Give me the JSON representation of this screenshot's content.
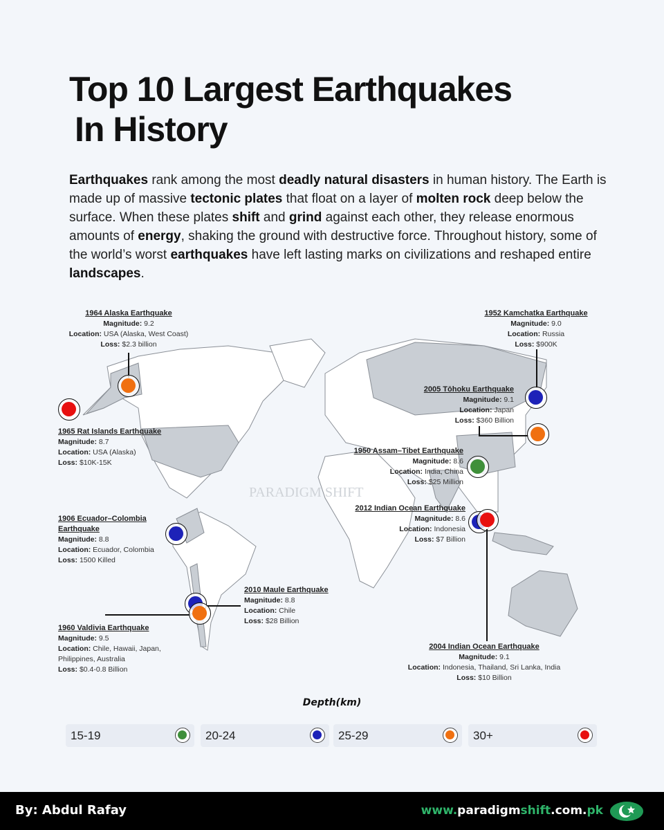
{
  "title": {
    "line1": "Top 10 Largest Earthquakes",
    "line2": "In History"
  },
  "intro": [
    {
      "t": "Earthquakes",
      "b": true
    },
    {
      "t": " rank among the most "
    },
    {
      "t": "deadly natural disasters",
      "b": true
    },
    {
      "t": " in human history. The Earth is made up of massive "
    },
    {
      "t": "tectonic plates",
      "b": true
    },
    {
      "t": " that float on a layer of "
    },
    {
      "t": "molten rock",
      "b": true
    },
    {
      "t": " deep below the surface. When these plates "
    },
    {
      "t": "shift",
      "b": true
    },
    {
      "t": " and "
    },
    {
      "t": "grind",
      "b": true
    },
    {
      "t": " against each other, they release enormous amounts of "
    },
    {
      "t": "energy",
      "b": true
    },
    {
      "t": ", shaking the ground with destructive force. Throughout history, some of the world’s worst "
    },
    {
      "t": "earthquakes",
      "b": true
    },
    {
      "t": " have left lasting marks on civilizations and reshaped entire "
    },
    {
      "t": "landscapes",
      "b": true
    },
    {
      "t": "."
    }
  ],
  "field_labels": {
    "magnitude": "Magnitude:",
    "location": "Location:",
    "loss": "Loss:"
  },
  "colors": {
    "15-19": "#3f8f3a",
    "20-24": "#1d22b8",
    "25-29": "#f07010",
    "30+": "#e81010"
  },
  "earthquakes": [
    {
      "name": "1964 Alaska Earthquake",
      "magnitude": "9.2",
      "location": "USA (Alaska, West Coast)",
      "loss": "$2.3 billion",
      "depth": "25-29"
    },
    {
      "name": "1965 Rat Islands Earthquake",
      "magnitude": "8.7",
      "location": "USA (Alaska)",
      "loss": "$10K-15K",
      "depth": "30+"
    },
    {
      "name": "1952 Kamchatka Earthquake",
      "magnitude": "9.0",
      "location": "Russia",
      "loss": "$900K",
      "depth": "20-24"
    },
    {
      "name": "2005 Tōhoku Earthquake",
      "magnitude": "9.1",
      "location": "Japan",
      "loss": "$360 Billion",
      "depth": "25-29"
    },
    {
      "name": "1950 Assam–Tibet Earthquake",
      "magnitude": "8.6",
      "location": "India, China",
      "loss": "$25 Million",
      "depth": "15-19"
    },
    {
      "name": "2012 Indian Ocean Earthquake",
      "magnitude": "8.6",
      "location": "Indonesia",
      "loss": "$7 Billion",
      "depth": "20-24"
    },
    {
      "name": "1906 Ecuador–Colombia Earthquake",
      "magnitude": "8.8",
      "location": "Ecuador, Colombia",
      "loss": "1500 Killed",
      "depth": "20-24"
    },
    {
      "name": "2010 Maule Earthquake",
      "magnitude": "8.8",
      "location": "Chile",
      "loss": "$28 Billion",
      "depth": "20-24"
    },
    {
      "name": "1960 Valdivia Earthquake",
      "magnitude": "9.5",
      "location": "Chile, Hawaii, Japan, Philippines, Australia",
      "loss": "$0.4-0.8 Billion",
      "depth": "25-29"
    },
    {
      "name": "2004 Indian Ocean Earthquake",
      "magnitude": "9.1",
      "location": "Indonesia, Thailand, Sri Lanka, India",
      "loss": "$10 Billion",
      "depth": "30+"
    }
  ],
  "legend": {
    "title": "Depth(km)",
    "items": [
      "15-19",
      "20-24",
      "25-29",
      "30+"
    ]
  },
  "watermark": "PARADIGM SHIFT",
  "footer": {
    "author": "By: Abdul Rafay",
    "site": [
      {
        "t": "www.",
        "g": true
      },
      {
        "t": "paradigm"
      },
      {
        "t": "shift",
        "g": true
      },
      {
        "t": ".com."
      },
      {
        "t": "pk",
        "g": true
      }
    ]
  }
}
